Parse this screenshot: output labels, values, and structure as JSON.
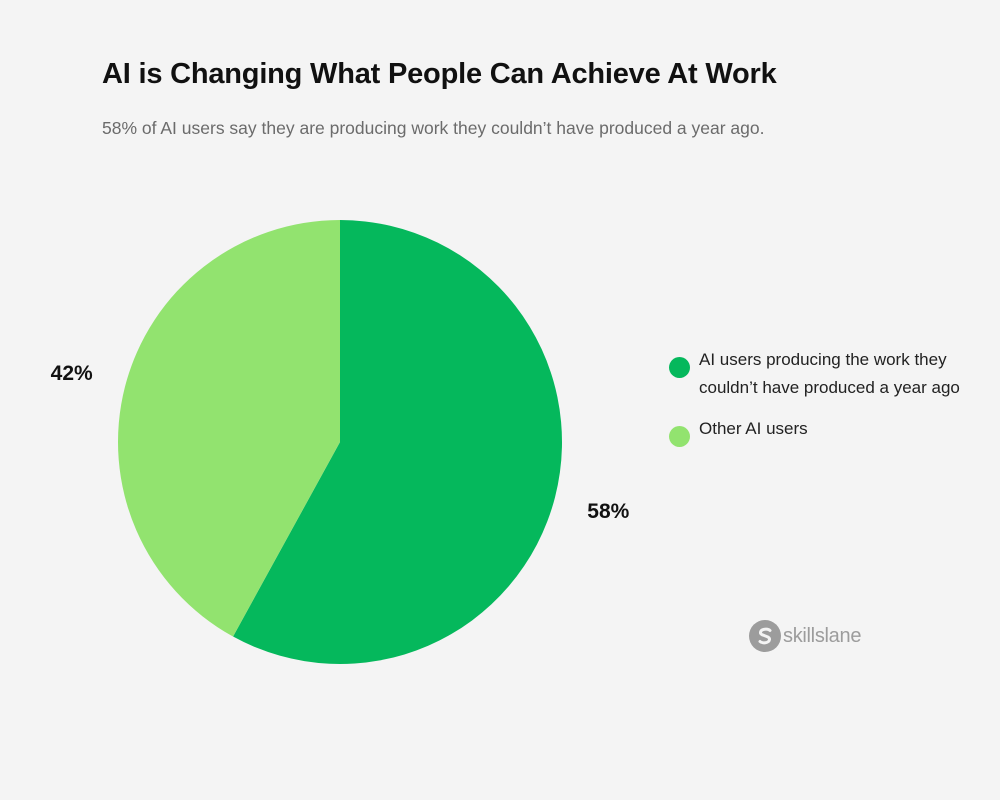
{
  "header": {
    "title": "AI is Changing What People Can Achieve At Work",
    "subtitle": "58% of AI users say they are producing work they couldn’t have produced a year ago."
  },
  "chart_data": {
    "type": "pie",
    "title": "AI is Changing What People Can Achieve At Work",
    "subtitle": "58% of AI users say they are producing work they couldn’t have produced a year ago.",
    "slices": [
      {
        "label": "AI users producing the work they couldn’t have produced a year ago",
        "value": 58,
        "display": "58%",
        "color": "#05b85c"
      },
      {
        "label": "Other AI users",
        "value": 42,
        "display": "42%",
        "color": "#92e36f"
      }
    ],
    "legend_position": "right"
  },
  "brand": {
    "name": "skillslane",
    "color": "#9c9c9c"
  }
}
